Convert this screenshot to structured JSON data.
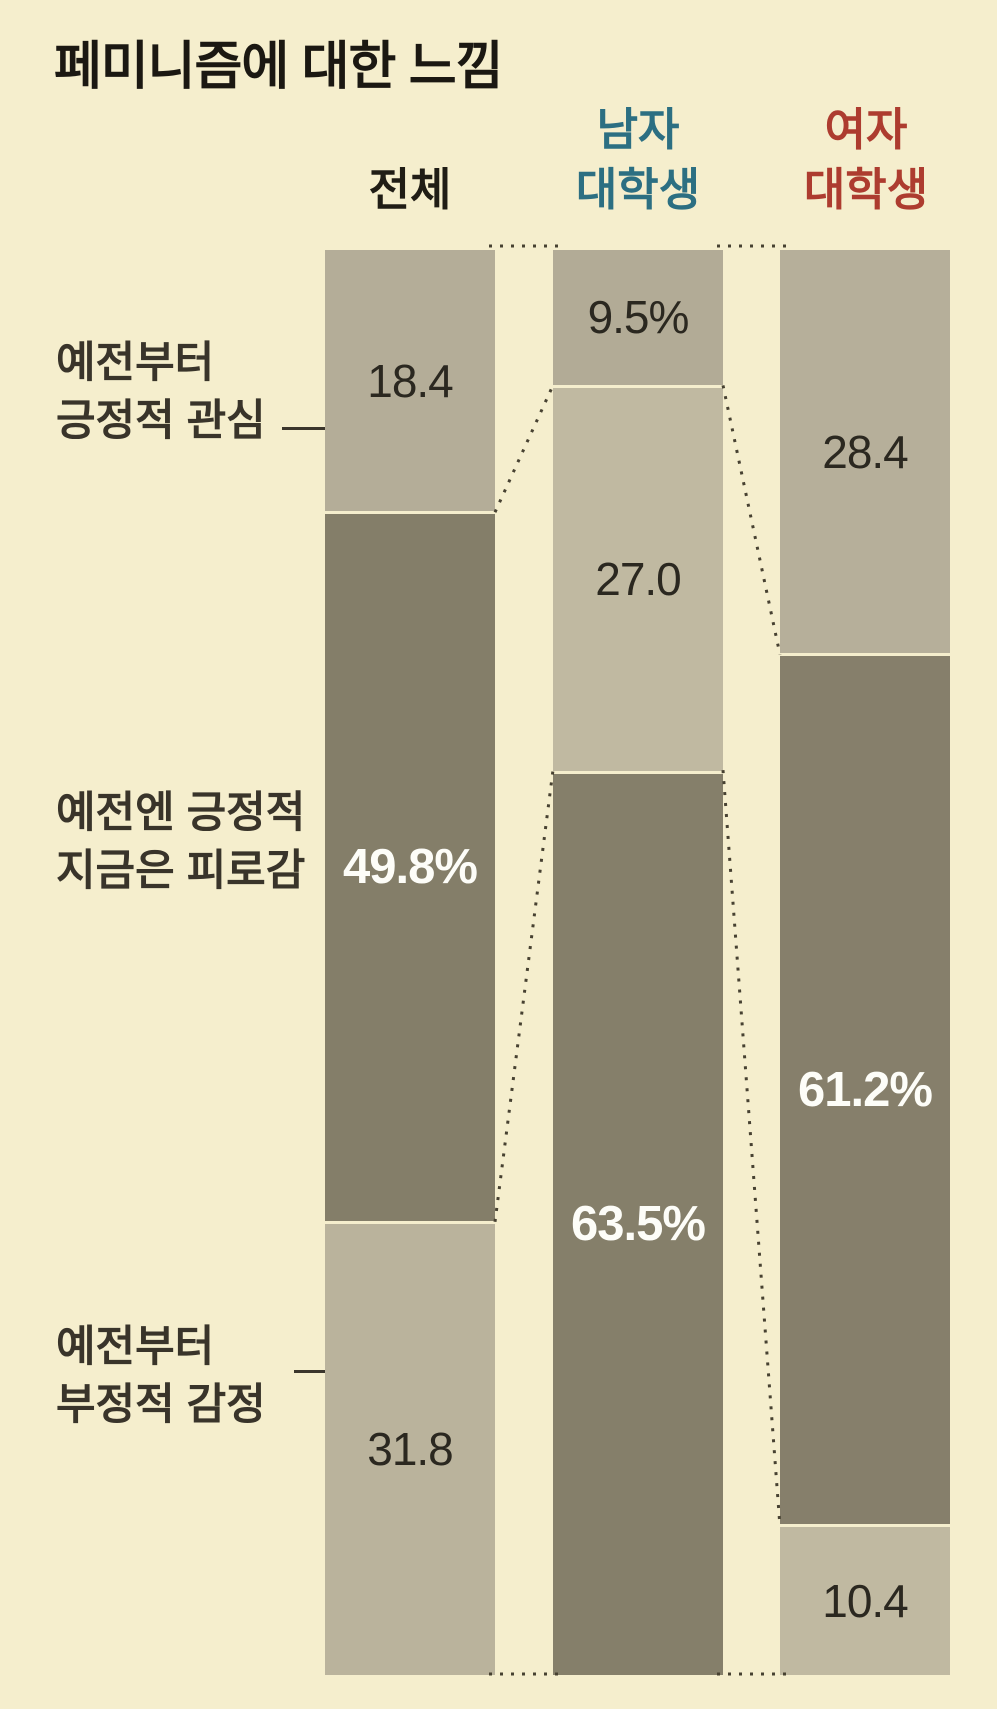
{
  "title": "페미니즘에 대한 느낌",
  "headers": [
    {
      "line1": "전체",
      "line2": "",
      "color": "#201d15"
    },
    {
      "line1": "남자",
      "line2": "대학생",
      "color": "#2c6f82"
    },
    {
      "line1": "여자",
      "line2": "대학생",
      "color": "#ad3c2f"
    }
  ],
  "row_labels": [
    {
      "line1": "예전부터",
      "line2": "긍정적 관심"
    },
    {
      "line1": "예전엔 긍정적",
      "line2": "지금은 피로감"
    },
    {
      "line1": "예전부터",
      "line2": "부정적 감정"
    }
  ],
  "colors": {
    "background": "#f5eecd",
    "title_text": "#1b1812",
    "label_text": "#39342a",
    "value_text_dark": "#2b2820",
    "value_text_light": "#fdfdf8",
    "segment_gray_tan": "#b4ad98",
    "segment_light_tan": "#c0b9a1",
    "segment_dark_olive": "#847e69",
    "header_male": "#2c6f82",
    "header_female": "#ad3c2f",
    "dashed_line": "#474131",
    "leader_line": "#3b362c"
  },
  "chart_data": {
    "type": "bar",
    "subtype": "stacked-percentage-columns",
    "title": "페미니즘에 대한 느낌",
    "unit": "%",
    "ylim": [
      0,
      100
    ],
    "grid": false,
    "legend": "none",
    "categories": [
      "예전부터 긍정적 관심",
      "예전엔 긍정적 지금은 피로감",
      "예전부터 부정적 감정"
    ],
    "columns": [
      {
        "name": "전체",
        "values": [
          18.4,
          49.8,
          31.8
        ],
        "segments": [
          {
            "category": "예전부터 긍정적 관심",
            "value": 18.4,
            "label": "18.4",
            "fill": "#b4ad98",
            "text": "#2b2820",
            "bold": false
          },
          {
            "category": "예전엔 긍정적 지금은 피로감",
            "value": 49.8,
            "label": "49.8%",
            "fill": "#847e69",
            "text": "#fdfdf8",
            "bold": true
          },
          {
            "category": "예전부터 부정적 감정",
            "value": 31.8,
            "label": "31.8",
            "fill": "#bab39c",
            "text": "#2b2820",
            "bold": false
          }
        ]
      },
      {
        "name": "남자 대학생",
        "values": [
          9.5,
          27.0,
          63.5
        ],
        "segments": [
          {
            "category": "예전부터 긍정적 관심",
            "value": 9.5,
            "label": "9.5%",
            "fill": "#b2ab96",
            "text": "#2b2820",
            "bold": false
          },
          {
            "category": "예전엔 긍정적 지금은 피로감",
            "value": 27.0,
            "label": "27.0",
            "fill": "#c0b9a1",
            "text": "#2b2820",
            "bold": false
          },
          {
            "category": "예전부터 부정적 감정",
            "value": 63.5,
            "label": "63.5%",
            "fill": "#857f6a",
            "text": "#fdfdf8",
            "bold": true
          }
        ]
      },
      {
        "name": "여자 대학생",
        "values": [
          28.4,
          61.2,
          10.4
        ],
        "segments": [
          {
            "category": "예전부터 긍정적 관심",
            "value": 28.4,
            "label": "28.4",
            "fill": "#b6af9a",
            "text": "#2b2820",
            "bold": false
          },
          {
            "category": "예전엔 긍정적 지금은 피로감",
            "value": 61.2,
            "label": "61.2%",
            "fill": "#867f6b",
            "text": "#fdfdf8",
            "bold": true
          },
          {
            "category": "예전부터 부정적 감정",
            "value": 10.4,
            "label": "10.4",
            "fill": "#c0b9a1",
            "text": "#2b2820",
            "bold": false
          }
        ]
      }
    ]
  }
}
